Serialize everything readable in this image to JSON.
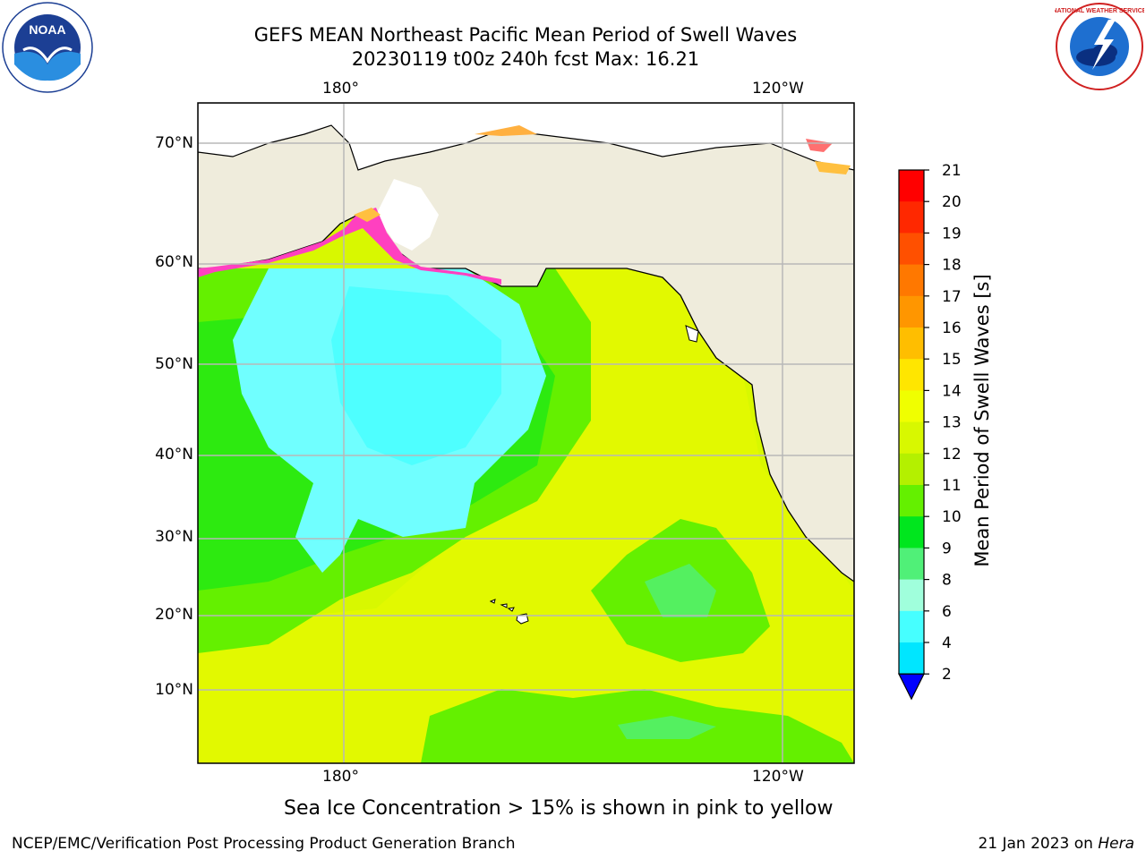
{
  "header": {
    "title_line1": "GEFS MEAN Northeast Pacific Mean Period of Swell Waves",
    "title_line2": "20230119 t00z 240h fcst   Max: 16.21"
  },
  "logos": {
    "left": "NOAA",
    "right": "NATIONAL WEATHER SERVICE"
  },
  "map": {
    "lon_labels_top": [
      "180°",
      "120°W"
    ],
    "lon_labels_bottom": [
      "180°",
      "120°W"
    ],
    "lat_labels": [
      "70°N",
      "60°N",
      "50°N",
      "40°N",
      "30°N",
      "20°N",
      "10°N"
    ],
    "land_color": "#efecdc",
    "grid_color": "#b8b8b8"
  },
  "colorbar": {
    "label": "Mean Period of Swell Waves [s]",
    "ticks": [
      "21",
      "20",
      "19",
      "18",
      "17",
      "16",
      "15",
      "14",
      "13",
      "12",
      "11",
      "10",
      "9",
      "8",
      "6",
      "4",
      "2"
    ],
    "colors": [
      "#ff0000",
      "#ff2800",
      "#ff5000",
      "#ff7800",
      "#ff9600",
      "#ffbe00",
      "#ffe600",
      "#f0ff00",
      "#d8f800",
      "#b4f000",
      "#64f000",
      "#00e61e",
      "#50f078",
      "#a0ffdc",
      "#46ffff",
      "#00e6ff",
      "#0078ff"
    ],
    "extend_color": "#0000ff"
  },
  "footer": {
    "note": "Sea Ice Concentration > 15% is shown in pink to yellow",
    "credit": "NCEP/EMC/Verification Post Processing Product Generation Branch",
    "date": "21 Jan 2023 on ",
    "host": "Hera"
  }
}
